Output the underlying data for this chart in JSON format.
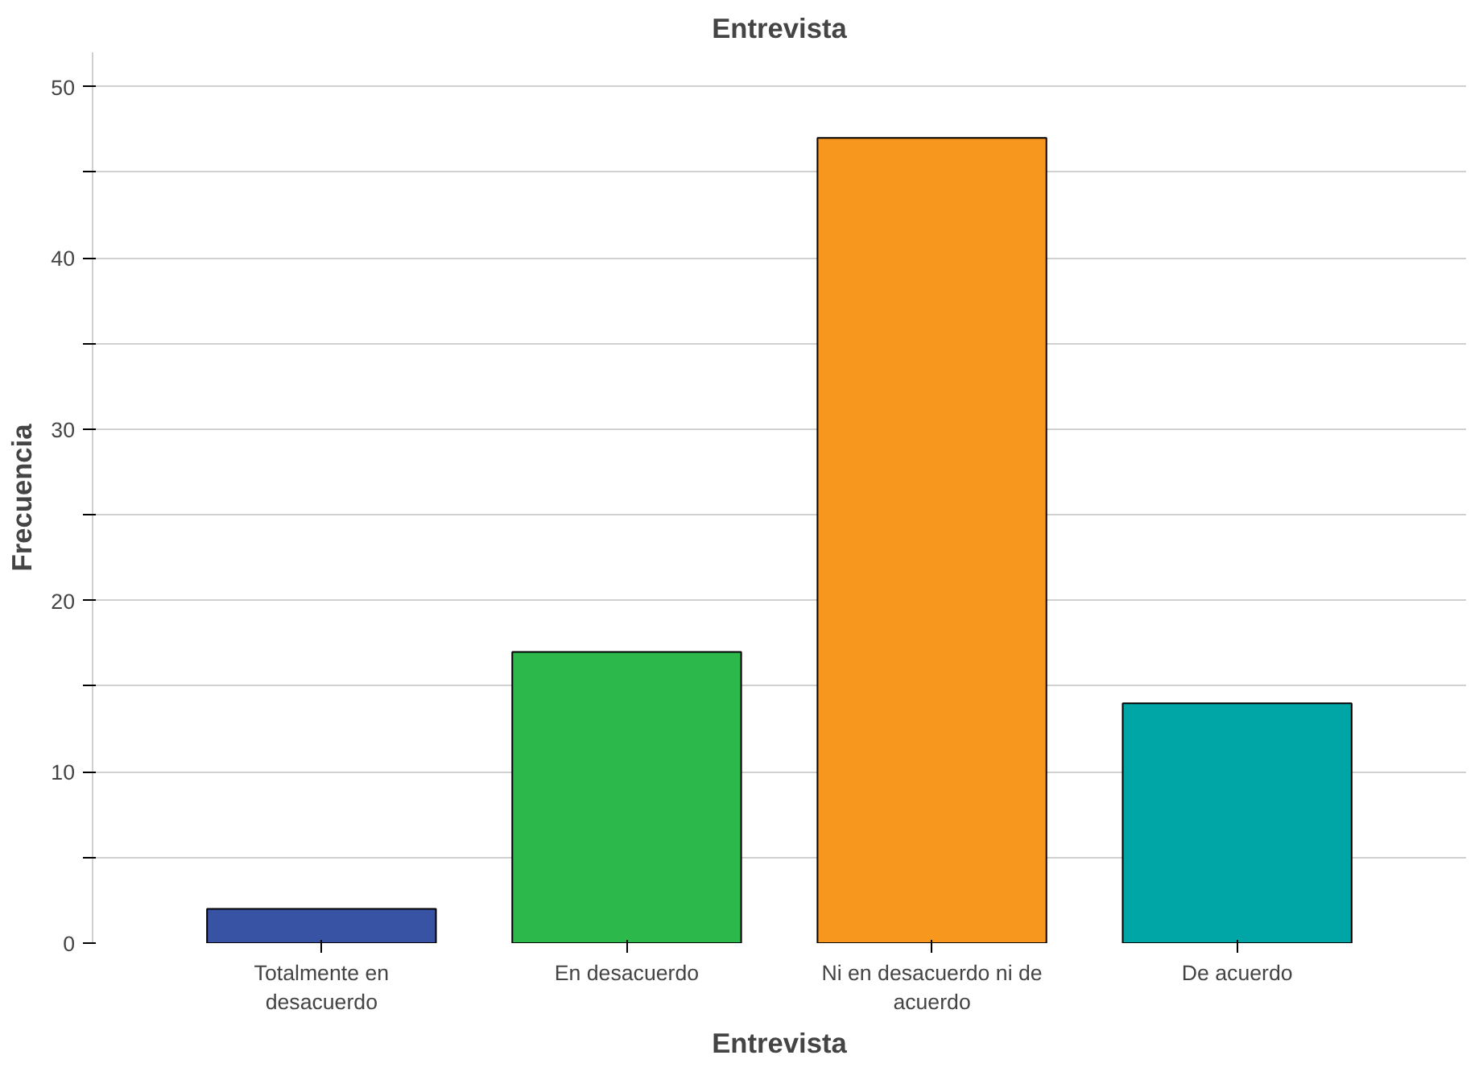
{
  "chart_data": {
    "type": "bar",
    "title": "Entrevista",
    "xlabel": "Entrevista",
    "ylabel": "Frecuencia",
    "categories": [
      "Totalmente en desacuerdo",
      "En desacuerdo",
      "Ni en desacuerdo ni de acuerdo",
      "De acuerdo"
    ],
    "values": [
      2,
      17,
      47,
      14
    ],
    "colors": [
      "#3953a4",
      "#2db84b",
      "#f7971e",
      "#00a6a6"
    ],
    "ylim": [
      0,
      52
    ],
    "yticks": [
      0,
      {
        "value": 5,
        "label": null
      },
      10,
      {
        "value": 15,
        "label": null
      },
      20,
      {
        "value": 25,
        "label": null
      },
      30,
      {
        "value": 35,
        "label": null
      },
      40,
      {
        "value": 45,
        "label": null
      },
      50
    ],
    "grid": "y"
  }
}
